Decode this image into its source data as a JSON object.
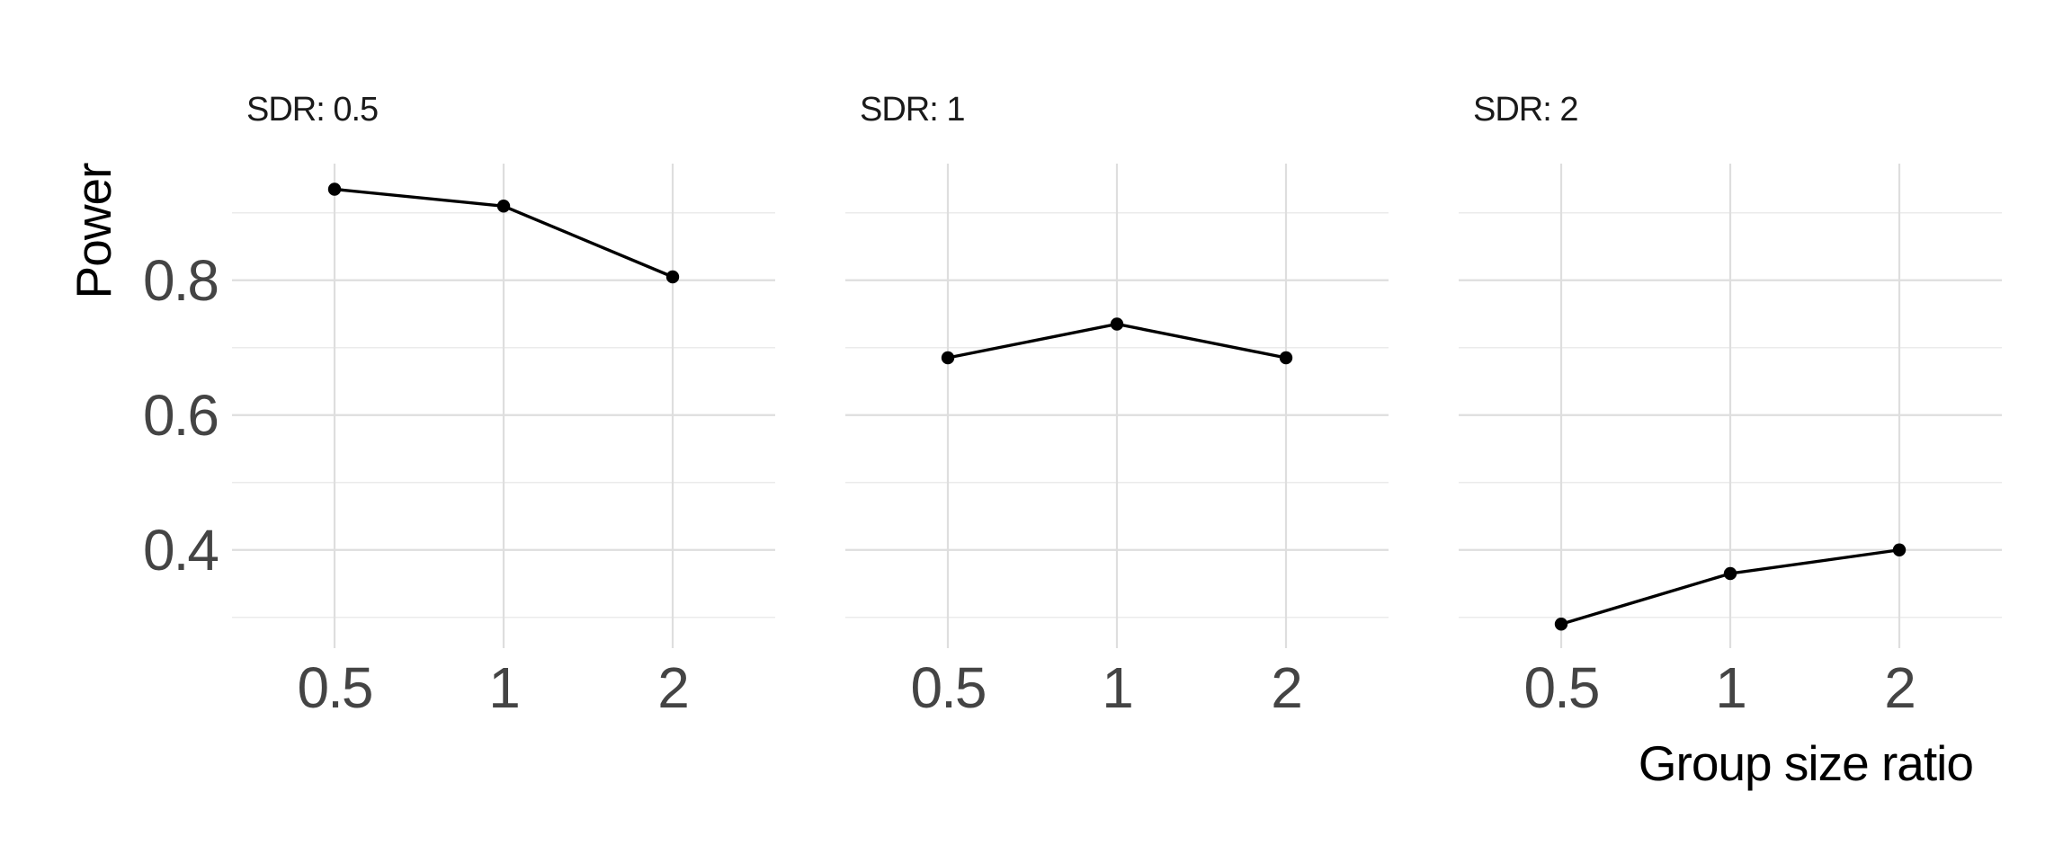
{
  "page": {
    "background": "#ffffff"
  },
  "y_axis": {
    "title": "Power",
    "tick_labels": [
      "0.8",
      "0.6",
      "0.4"
    ]
  },
  "x_axis": {
    "title": "Group size ratio",
    "tick_labels": [
      "0.5",
      "1",
      "2"
    ]
  },
  "chart_data": {
    "type": "line",
    "faceted_by": "SDR",
    "x": [
      0.5,
      1,
      2
    ],
    "x_scale": "log2",
    "xlabel": "Group size ratio",
    "ylabel": "Power",
    "x_tick_labels": [
      "0.5",
      "1",
      "2"
    ],
    "y_major_ticks": [
      0.4,
      0.6,
      0.8
    ],
    "y_gridlines": [
      0.3,
      0.4,
      0.5,
      0.6,
      0.7,
      0.8,
      0.9
    ],
    "ylim": [
      0.255,
      0.973
    ],
    "grid": "major and minor horizontal, major vertical, light gray on white",
    "legend": "none",
    "marker": "filled circle",
    "facets": [
      {
        "label": "SDR: 0.5",
        "values": [
          0.935,
          0.91,
          0.805
        ]
      },
      {
        "label": "SDR: 1",
        "values": [
          0.685,
          0.735,
          0.685
        ]
      },
      {
        "label": "SDR: 2",
        "values": [
          0.29,
          0.365,
          0.4
        ]
      }
    ],
    "colors": {
      "series_line": "#000000",
      "series_point": "#000000",
      "grid_major": "#dedede",
      "grid_minor": "#ebebeb",
      "strip_text": "#1a1a1a",
      "axis_text": "#444444",
      "axis_title": "#000000",
      "background": "#ffffff"
    }
  }
}
